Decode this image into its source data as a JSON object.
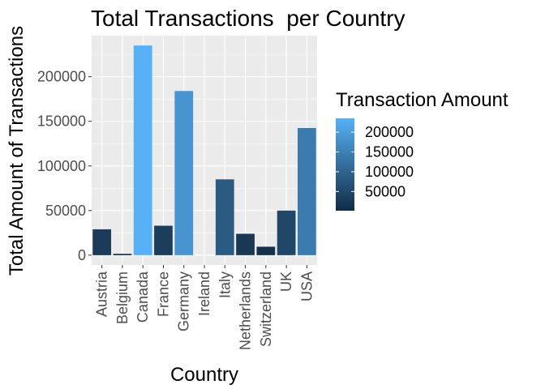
{
  "chart_data": {
    "type": "bar",
    "title": "Total Transactions  per Country",
    "xlabel": "Country",
    "ylabel": "Total Amount of Transactions",
    "categories": [
      "Austria",
      "Belgium",
      "Canada",
      "France",
      "Germany",
      "Ireland",
      "Italy",
      "Netherlands",
      "Switzerland",
      "UK",
      "USA"
    ],
    "values": [
      29000,
      1500,
      235000,
      33000,
      184000,
      0,
      85000,
      24000,
      9500,
      50000,
      142500
    ],
    "ylim": [
      -11000,
      246000
    ],
    "yticks": [
      0,
      50000,
      100000,
      150000,
      200000
    ],
    "ytick_labels": [
      "0",
      "50000",
      "100000",
      "150000",
      "200000"
    ],
    "grid": true,
    "legend": {
      "title": "Transaction Amount",
      "placement": "right",
      "type": "colorbar",
      "range": [
        1500,
        235000
      ],
      "breaks": [
        50000,
        100000,
        150000,
        200000
      ],
      "labels": [
        "50000",
        "100000",
        "150000",
        "200000"
      ]
    },
    "colors": {
      "low": "#132B43",
      "high": "#56B1F7",
      "panel_background": "#EBEBEB",
      "grid": "#FFFFFF",
      "tick_text": "#4D4D4D"
    }
  }
}
